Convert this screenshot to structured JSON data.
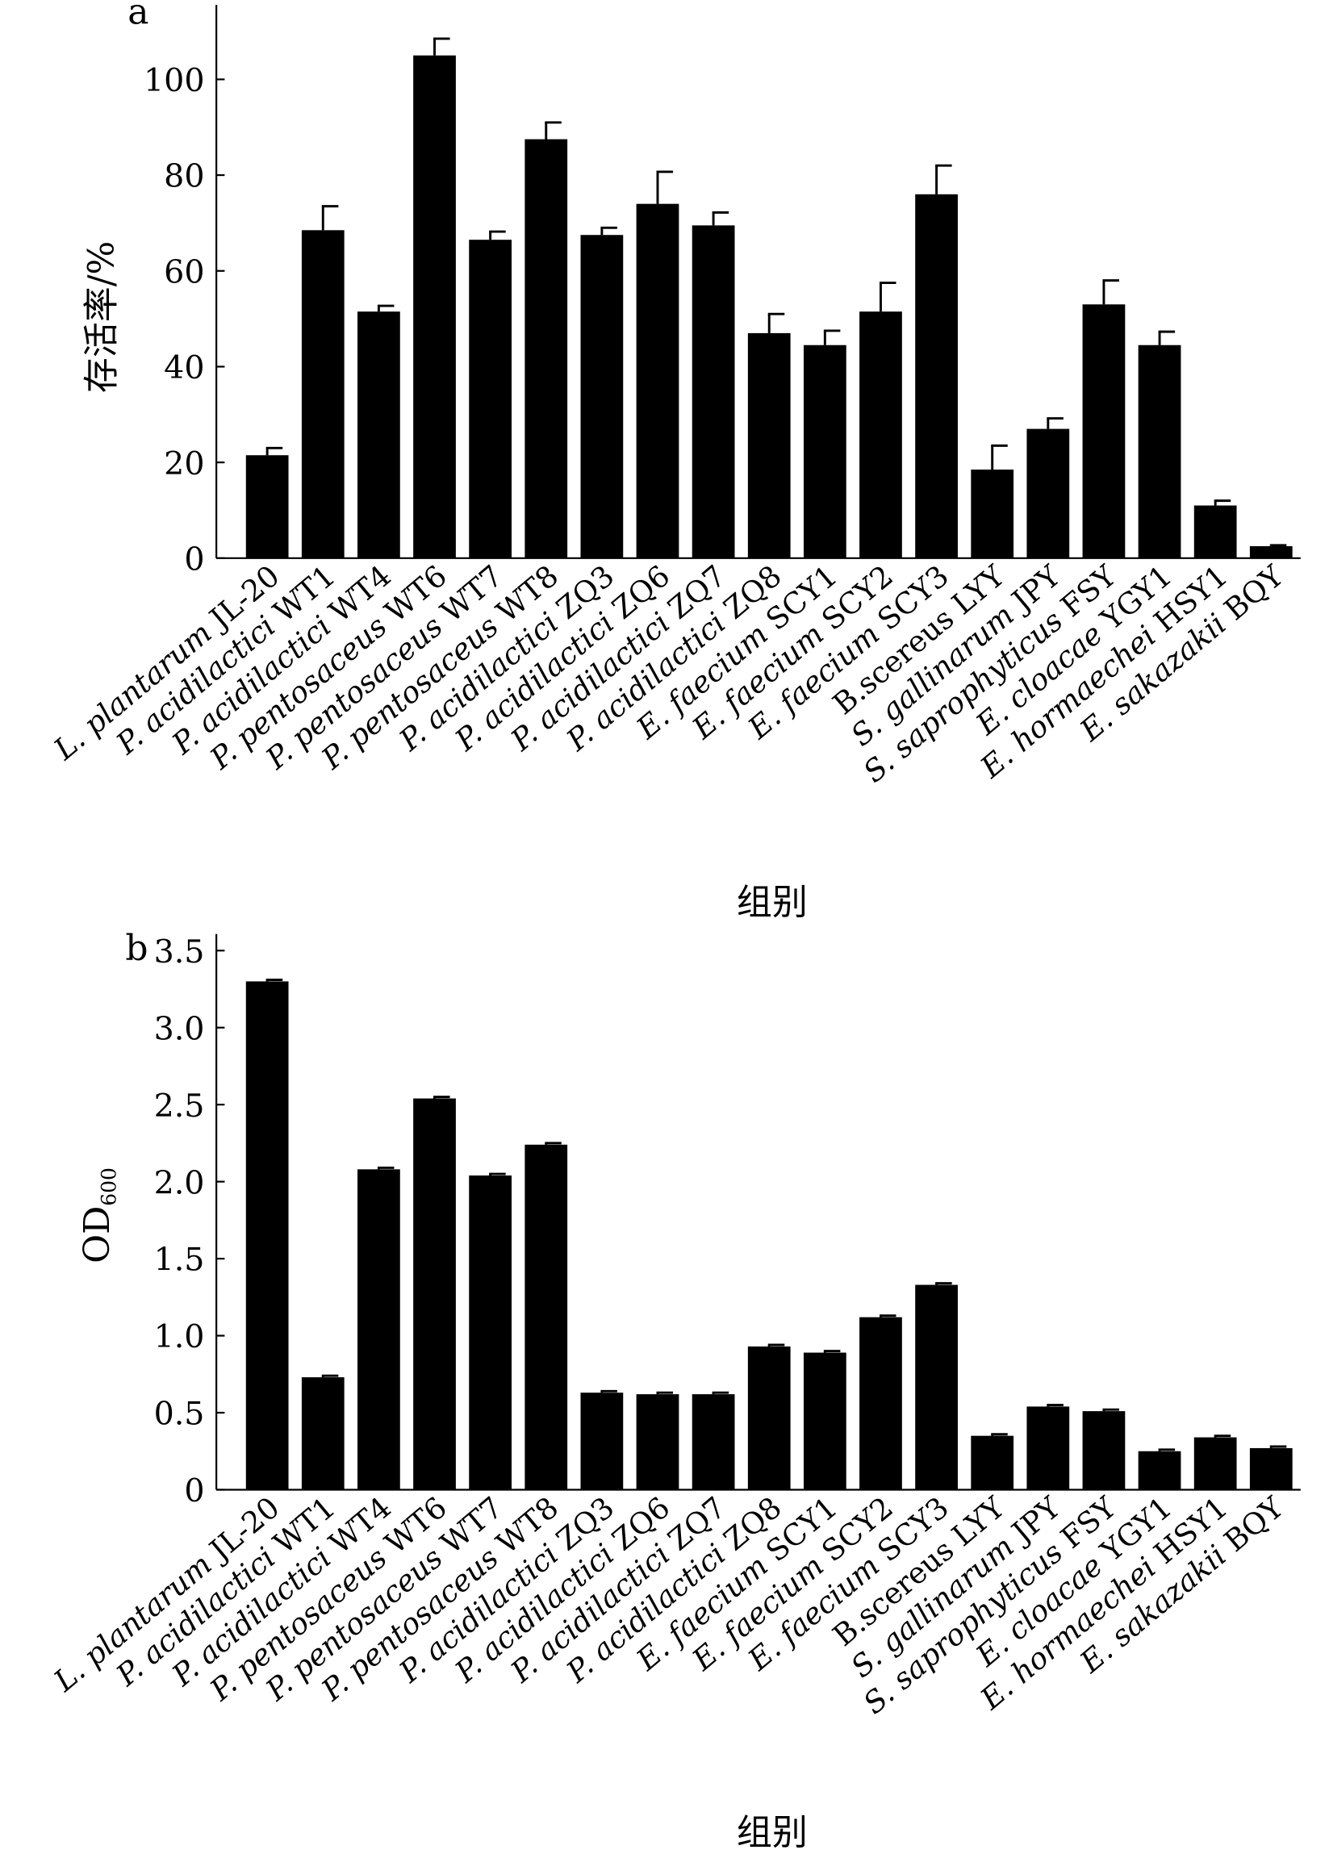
{
  "chart_data": [
    {
      "type": "bar",
      "panel_label": "a",
      "xlabel": "组别",
      "ylabel": "存活率/%",
      "ylim": [
        0,
        115
      ],
      "yticks": [
        0,
        20,
        40,
        60,
        80,
        100
      ],
      "categories": [
        {
          "species": "L. plantarum",
          "strain": "JL-20"
        },
        {
          "species": "P. acidilactici",
          "strain": "WT1"
        },
        {
          "species": "P. acidilactici",
          "strain": "WT4"
        },
        {
          "species": "P. pentosaceus",
          "strain": "WT6"
        },
        {
          "species": "P. pentosaceus",
          "strain": "WT7"
        },
        {
          "species": "P. pentosaceus",
          "strain": "WT8"
        },
        {
          "species": "P. acidilactici",
          "strain": "ZQ3"
        },
        {
          "species": "P. acidilactici",
          "strain": "ZQ6"
        },
        {
          "species": "P. acidilactici",
          "strain": "ZQ7"
        },
        {
          "species": "P. acidilactici",
          "strain": "ZQ8"
        },
        {
          "species": "E. faecium",
          "strain": "SCY1"
        },
        {
          "species": "E. faecium",
          "strain": "SCY2"
        },
        {
          "species": "E. faecium",
          "strain": "SCY3"
        },
        {
          "species": "",
          "strain": "B.scereus LYY"
        },
        {
          "species": "S. gallinarum",
          "strain": "JPY"
        },
        {
          "species": "S. saprophyticus",
          "strain": "FSY"
        },
        {
          "species": "E. cloacae",
          "strain": "YGY1"
        },
        {
          "species": "E. hormaechei",
          "strain": "HSY1"
        },
        {
          "species": "E. sakazakii",
          "strain": "BQY"
        }
      ],
      "values": [
        21.5,
        68.5,
        51.5,
        105,
        66.5,
        87.5,
        67.5,
        74,
        69.5,
        47,
        44.5,
        51.5,
        76,
        18.5,
        27,
        53,
        44.5,
        11,
        2.5
      ],
      "errors": [
        1.5,
        5,
        1.2,
        3.5,
        1.7,
        3.5,
        1.5,
        6.7,
        2.7,
        4,
        3,
        6,
        6,
        5,
        2.2,
        5,
        2.8,
        1,
        0.2
      ],
      "grid": false
    },
    {
      "type": "bar",
      "panel_label": "b",
      "xlabel": "组别",
      "ylabel": "OD",
      "ylabel_sub": "600",
      "ylim": [
        0,
        3.6
      ],
      "yticks": [
        "0",
        "0.5",
        "1.0",
        "1.5",
        "2.0",
        "2.5",
        "3.0",
        "3.5"
      ],
      "values": [
        3.3,
        0.73,
        2.08,
        2.54,
        2.04,
        2.24,
        0.63,
        0.62,
        0.62,
        0.93,
        0.89,
        1.12,
        1.33,
        0.35,
        0.54,
        0.51,
        0.25,
        0.34,
        0.27
      ],
      "errors": [
        0.01,
        0.01,
        0.01,
        0.01,
        0.01,
        0.01,
        0.01,
        0.01,
        0.01,
        0.01,
        0.01,
        0.01,
        0.01,
        0.01,
        0.01,
        0.01,
        0.01,
        0.01,
        0.01
      ],
      "grid": false
    }
  ]
}
